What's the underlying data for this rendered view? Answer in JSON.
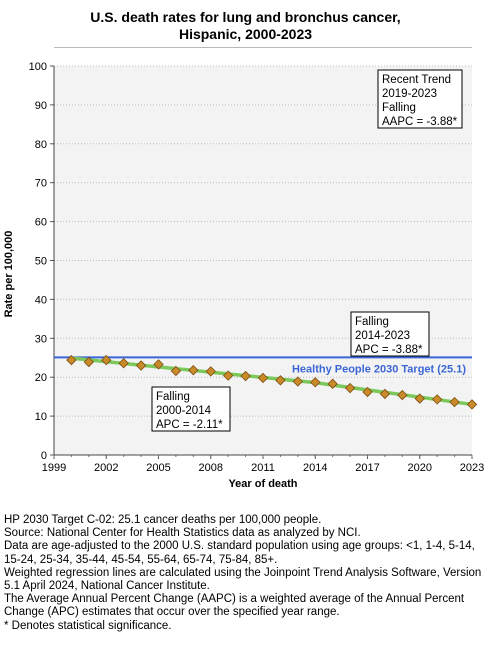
{
  "title_line1": "U.S. death rates for lung and bronchus cancer,",
  "title_line2": "Hispanic,  2000-2023",
  "chart_data": {
    "type": "line",
    "xlabel": "Year of death",
    "ylabel": "Rate per 100,000",
    "xlim": [
      1999,
      2023
    ],
    "ylim": [
      0,
      100
    ],
    "xticks": [
      1999,
      2002,
      2005,
      2008,
      2011,
      2014,
      2017,
      2020,
      2023
    ],
    "yticks": [
      0,
      10,
      20,
      30,
      40,
      50,
      60,
      70,
      80,
      90,
      100
    ],
    "grid": "horizontal",
    "colors": {
      "fitted": "#7cc85a",
      "observed_fill": "#c98a2a",
      "observed_stroke": "#7a4b10",
      "target": "#3a66d6",
      "plot_bg": "#f3f3f3"
    },
    "series": [
      {
        "x": [
          2000,
          2001,
          2002,
          2003,
          2004,
          2005,
          2006,
          2007,
          2008,
          2009,
          2010,
          2011,
          2012,
          2013,
          2014,
          2015,
          2016,
          2017,
          2018,
          2019,
          2020,
          2021,
          2022,
          2023
        ],
        "values": [
          24.4,
          23.9,
          24.4,
          23.6,
          23.0,
          23.3,
          21.6,
          21.8,
          21.5,
          20.4,
          20.3,
          19.8,
          19.2,
          18.9,
          18.7,
          18.3,
          17.2,
          16.2,
          15.7,
          15.4,
          14.5,
          14.3,
          13.6,
          13.0
        ]
      },
      {
        "x": [
          2000,
          2014,
          2023
        ],
        "values": [
          24.9,
          18.6,
          13.0
        ]
      }
    ],
    "target": {
      "value": 25.1,
      "label": "Healthy People 2030 Target (25.1)"
    },
    "annotations": [
      {
        "lines": [
          "Recent Trend",
          "2019-2023",
          "Falling",
          "AAPC = -3.88*"
        ]
      },
      {
        "lines": [
          "Falling",
          "2014-2023",
          "APC = -3.88*"
        ]
      },
      {
        "lines": [
          "Falling",
          "2000-2014",
          "APC = -2.11*"
        ]
      }
    ]
  },
  "footnotes": [
    "HP 2030 Target C-02: 25.1 cancer deaths per 100,000 people.",
    "Source: National Center for Health Statistics data as analyzed by NCI.",
    "Data are age-adjusted to the 2000 U.S. standard population using age groups: <1, 1-4, 5-14, 15-24, 25-34, 35-44, 45-54, 55-64, 65-74, 75-84, 85+.",
    "Weighted regression lines are calculated using the Joinpoint Trend Analysis Software, Version 5.1 April 2024, National Cancer Institute.",
    "The Average Annual Percent Change (AAPC) is a weighted average of the Annual Percent Change (APC) estimates that occur over the specified year range.",
    "* Denotes statistical significance."
  ]
}
